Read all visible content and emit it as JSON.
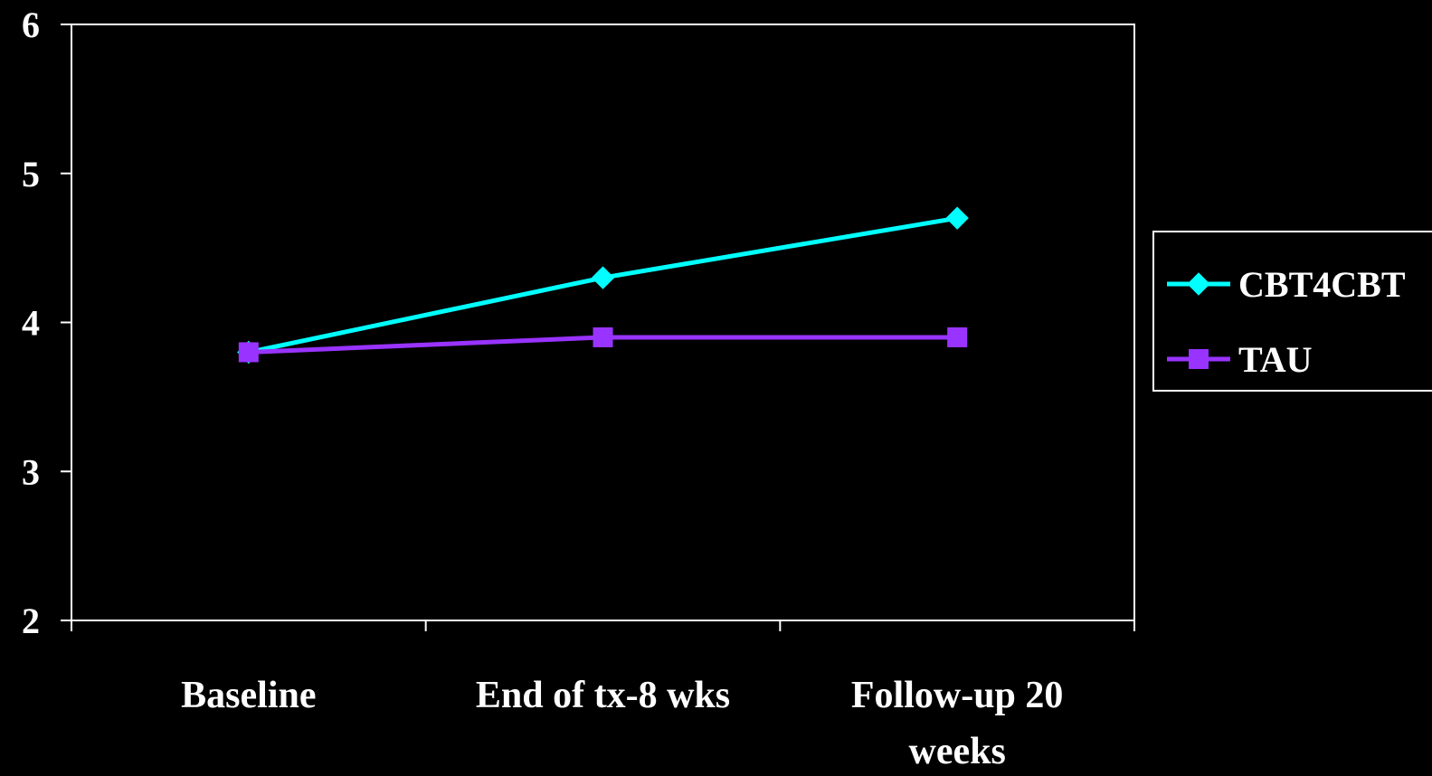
{
  "chart_data": {
    "type": "line",
    "title": "",
    "xlabel": "",
    "ylabel": "",
    "categories": [
      "Baseline",
      "End of tx-8 wks",
      "Follow-up 20 weeks"
    ],
    "category_lines": [
      [
        "Baseline"
      ],
      [
        "End of tx-8 wks"
      ],
      [
        "Follow-up 20",
        "weeks"
      ]
    ],
    "ylim": [
      2,
      6
    ],
    "yticks": [
      "2",
      "3",
      "4",
      "5",
      "6"
    ],
    "grid": false,
    "legend_position": "right",
    "series": [
      {
        "name": "CBT4CBT",
        "values": [
          3.8,
          4.3,
          4.7
        ],
        "color": "#00FFFF",
        "marker": "diamond"
      },
      {
        "name": "TAU",
        "values": [
          3.8,
          3.9,
          3.9
        ],
        "color": "#9933FF",
        "marker": "square"
      }
    ]
  }
}
